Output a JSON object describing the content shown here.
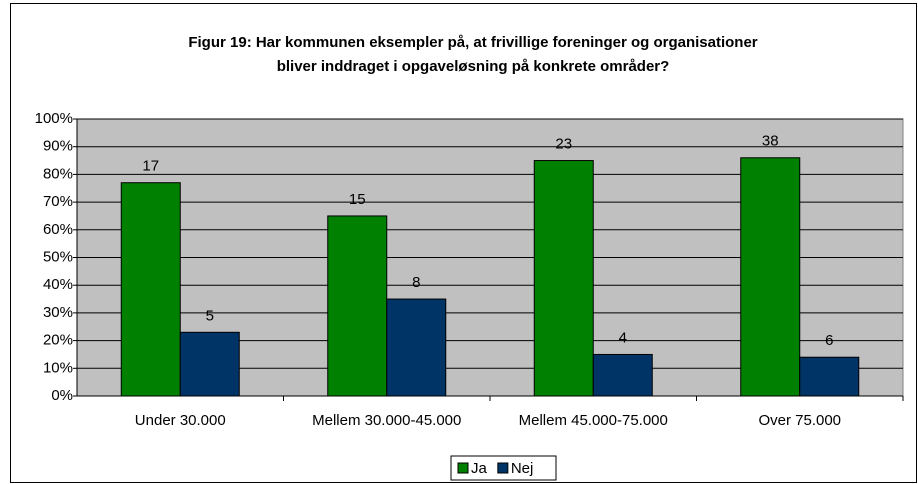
{
  "chart_data": {
    "type": "bar",
    "title": [
      "Figur 19: Har kommunen eksempler på, at frivillige foreninger og organisationer",
      "bliver inddraget i opgaveløsning på konkrete områder?"
    ],
    "categories": [
      "Under 30.000",
      "Mellem 30.000-45.000",
      "Mellem 45.000-75.000",
      "Over 75.000"
    ],
    "series": [
      {
        "name": "Ja",
        "color": "#008000",
        "values": [
          77,
          65,
          85,
          86
        ],
        "counts": [
          17,
          15,
          23,
          38
        ]
      },
      {
        "name": "Nej",
        "color": "#003366",
        "values": [
          23,
          35,
          15,
          14
        ],
        "counts": [
          5,
          8,
          4,
          6
        ]
      }
    ],
    "ylim": [
      0,
      100
    ],
    "yticks": [
      {
        "value": 0,
        "label": "0%"
      },
      {
        "value": 10,
        "label": "10%"
      },
      {
        "value": 20,
        "label": "20%"
      },
      {
        "value": 30,
        "label": "30%"
      },
      {
        "value": 40,
        "label": "40%"
      },
      {
        "value": 50,
        "label": "50%"
      },
      {
        "value": 60,
        "label": "60%"
      },
      {
        "value": 70,
        "label": "70%"
      },
      {
        "value": 80,
        "label": "80%"
      },
      {
        "value": 90,
        "label": "90%"
      },
      {
        "value": 100,
        "label": "100%"
      }
    ],
    "grid": true,
    "legend": "bottom",
    "plot_background": "#c0c0c0"
  }
}
